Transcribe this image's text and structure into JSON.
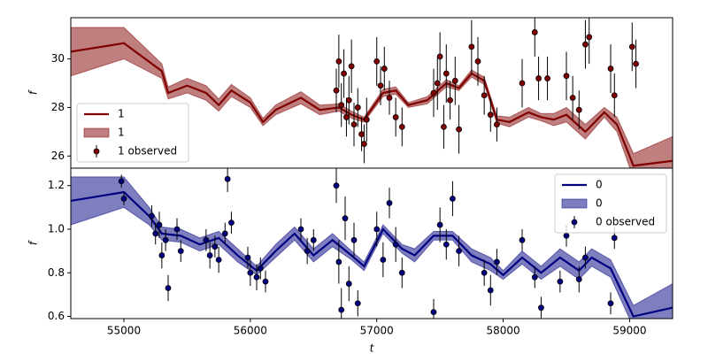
{
  "chart_data": [
    {
      "type": "line",
      "ylabel": "f",
      "legend": "lower left",
      "xlim": [
        54580,
        59340
      ],
      "ylim": [
        25.5,
        31.7
      ],
      "yticks": [
        26,
        28,
        30
      ],
      "x": [
        54580,
        55000,
        55300,
        55350,
        55500,
        55650,
        55750,
        55850,
        56000,
        56100,
        56200,
        56400,
        56550,
        56700,
        56800,
        56900,
        57050,
        57150,
        57250,
        57400,
        57550,
        57650,
        57750,
        57850,
        57950,
        58050,
        58200,
        58300,
        58400,
        58500,
        58650,
        58800,
        58900,
        59030,
        59340
      ],
      "series": [
        {
          "type": "line",
          "name": "1",
          "color": "#800000",
          "values": [
            30.3,
            30.65,
            29.5,
            28.6,
            28.9,
            28.6,
            28.1,
            28.7,
            28.2,
            27.4,
            27.9,
            28.4,
            27.9,
            28.0,
            27.7,
            27.5,
            28.6,
            28.7,
            28.1,
            28.3,
            29.0,
            28.8,
            29.4,
            29.1,
            27.5,
            27.4,
            27.8,
            27.6,
            27.5,
            27.7,
            27.0,
            27.8,
            27.3,
            25.6,
            25.8
          ]
        },
        {
          "type": "band",
          "name": "1",
          "color": "#800000",
          "lower": [
            29.3,
            30.0,
            29.2,
            28.35,
            28.6,
            28.3,
            27.85,
            28.45,
            28.0,
            27.25,
            27.7,
            28.15,
            27.7,
            27.85,
            27.55,
            27.4,
            28.45,
            28.55,
            28.0,
            28.15,
            28.85,
            28.7,
            29.25,
            28.95,
            27.35,
            27.2,
            27.6,
            27.45,
            27.25,
            27.4,
            26.7,
            27.6,
            27.0,
            25.1,
            24.8
          ],
          "upper": [
            31.3,
            31.3,
            29.8,
            28.85,
            29.2,
            28.9,
            28.35,
            28.95,
            28.4,
            27.55,
            28.1,
            28.65,
            28.1,
            28.15,
            27.85,
            27.6,
            28.75,
            28.85,
            28.2,
            28.45,
            29.15,
            28.9,
            29.55,
            29.25,
            27.65,
            27.6,
            28.0,
            27.75,
            27.75,
            28.0,
            27.3,
            28.0,
            27.6,
            26.1,
            26.8
          ]
        },
        {
          "type": "errorbar",
          "name": "1 observed",
          "color": "#800000",
          "x": [
            56680,
            56700,
            56720,
            56740,
            56760,
            56780,
            56800,
            56820,
            56850,
            56880,
            56900,
            56920,
            57000,
            57030,
            57060,
            57100,
            57150,
            57200,
            57450,
            57480,
            57500,
            57530,
            57550,
            57580,
            57620,
            57650,
            57750,
            57800,
            57850,
            57900,
            57950,
            58150,
            58250,
            58280,
            58350,
            58500,
            58550,
            58600,
            58650,
            58680,
            58850,
            58880,
            59020,
            59050
          ],
          "values": [
            28.7,
            29.9,
            28.1,
            29.4,
            27.6,
            28.3,
            29.7,
            27.3,
            28.0,
            26.9,
            26.5,
            27.5,
            29.9,
            28.9,
            29.6,
            28.4,
            27.6,
            27.2,
            28.6,
            29.0,
            30.1,
            27.2,
            29.4,
            28.3,
            29.1,
            27.1,
            30.5,
            29.9,
            28.5,
            27.7,
            27.3,
            29.0,
            31.1,
            29.2,
            29.2,
            29.3,
            28.4,
            27.9,
            30.6,
            30.9,
            29.6,
            28.5,
            30.5,
            29.8
          ],
          "errors": [
            0.9,
            1.1,
            0.9,
            1.0,
            0.8,
            1.0,
            1.1,
            0.9,
            0.8,
            0.7,
            0.8,
            0.9,
            1.0,
            0.8,
            0.9,
            0.7,
            0.8,
            0.8,
            1.0,
            1.1,
            1.0,
            0.9,
            1.2,
            0.8,
            1.0,
            1.0,
            1.1,
            1.0,
            0.8,
            0.7,
            0.7,
            1.0,
            1.0,
            0.9,
            0.9,
            1.0,
            0.9,
            0.8,
            1.0,
            1.1,
            1.0,
            0.9,
            1.0,
            1.0
          ]
        }
      ]
    },
    {
      "type": "line",
      "ylabel": "f",
      "xlabel": "t",
      "legend": "upper right",
      "xlim": [
        54580,
        59340
      ],
      "ylim": [
        0.59,
        1.28
      ],
      "yticks": [
        0.6,
        0.8,
        {
          "value": 1,
          "label": "1.0"
        },
        1.2
      ],
      "xticks": [
        55000,
        56000,
        57000,
        58000,
        59000
      ],
      "x": [
        54580,
        55000,
        55200,
        55300,
        55450,
        55600,
        55750,
        55900,
        56050,
        56200,
        56350,
        56500,
        56650,
        56800,
        56900,
        57050,
        57200,
        57300,
        57450,
        57600,
        57750,
        57900,
        58000,
        58150,
        58300,
        58450,
        58600,
        58700,
        58850,
        59030,
        59340
      ],
      "series": [
        {
          "type": "line",
          "name": "0",
          "color": "#000080",
          "values": [
            1.13,
            1.17,
            1.06,
            0.98,
            0.97,
            0.93,
            0.96,
            0.88,
            0.81,
            0.9,
            0.98,
            0.88,
            0.95,
            0.88,
            0.83,
            1.0,
            0.91,
            0.88,
            0.97,
            0.97,
            0.88,
            0.84,
            0.79,
            0.87,
            0.8,
            0.87,
            0.81,
            0.87,
            0.82,
            0.6,
            0.64
          ]
        },
        {
          "type": "band",
          "name": "0",
          "color": "#000080",
          "lower": [
            1.02,
            1.1,
            1.02,
            0.95,
            0.94,
            0.9,
            0.93,
            0.85,
            0.79,
            0.87,
            0.95,
            0.85,
            0.92,
            0.86,
            0.81,
            0.98,
            0.89,
            0.85,
            0.95,
            0.95,
            0.85,
            0.81,
            0.77,
            0.84,
            0.77,
            0.83,
            0.77,
            0.83,
            0.78,
            0.55,
            0.53
          ],
          "upper": [
            1.24,
            1.24,
            1.1,
            1.01,
            1.0,
            0.96,
            0.99,
            0.91,
            0.83,
            0.93,
            1.01,
            0.91,
            0.98,
            0.9,
            0.85,
            1.02,
            0.93,
            0.91,
            0.99,
            0.99,
            0.91,
            0.87,
            0.81,
            0.9,
            0.83,
            0.91,
            0.85,
            0.91,
            0.86,
            0.65,
            0.75
          ]
        },
        {
          "type": "errorbar",
          "name": "0 observed",
          "color": "#000080",
          "x": [
            54980,
            55000,
            55220,
            55250,
            55280,
            55300,
            55330,
            55350,
            55420,
            55450,
            55650,
            55680,
            55720,
            55750,
            55800,
            55820,
            55850,
            55980,
            56000,
            56050,
            56080,
            56120,
            56400,
            56450,
            56500,
            56680,
            56700,
            56720,
            56750,
            56780,
            56820,
            56850,
            57000,
            57050,
            57100,
            57150,
            57200,
            57450,
            57500,
            57550,
            57600,
            57650,
            57850,
            57900,
            57950,
            58150,
            58250,
            58300,
            58450,
            58500,
            58600,
            58650,
            58850,
            58880
          ],
          "values": [
            1.22,
            1.14,
            1.06,
            0.98,
            1.02,
            0.88,
            0.95,
            0.73,
            1.0,
            0.9,
            0.95,
            0.88,
            0.92,
            0.86,
            0.98,
            1.23,
            1.03,
            0.87,
            0.8,
            0.78,
            0.82,
            0.76,
            1.0,
            0.9,
            0.95,
            1.2,
            0.85,
            0.63,
            1.05,
            0.75,
            0.95,
            0.66,
            1.0,
            0.86,
            1.12,
            0.93,
            0.8,
            0.62,
            1.02,
            0.93,
            1.14,
            0.9,
            0.8,
            0.72,
            0.85,
            0.95,
            0.78,
            0.64,
            0.76,
            0.97,
            0.77,
            0.87,
            0.66,
            0.96
          ],
          "errors": [
            0.03,
            0.03,
            0.05,
            0.05,
            0.06,
            0.06,
            0.05,
            0.06,
            0.05,
            0.05,
            0.05,
            0.06,
            0.05,
            0.06,
            0.05,
            0.06,
            0.05,
            0.05,
            0.06,
            0.06,
            0.05,
            0.05,
            0.05,
            0.06,
            0.05,
            0.08,
            0.1,
            0.1,
            0.1,
            0.08,
            0.08,
            0.06,
            0.08,
            0.08,
            0.07,
            0.08,
            0.07,
            0.06,
            0.08,
            0.07,
            0.08,
            0.07,
            0.06,
            0.07,
            0.06,
            0.05,
            0.05,
            0.05,
            0.05,
            0.05,
            0.06,
            0.05,
            0.05,
            0.05
          ]
        }
      ]
    }
  ]
}
